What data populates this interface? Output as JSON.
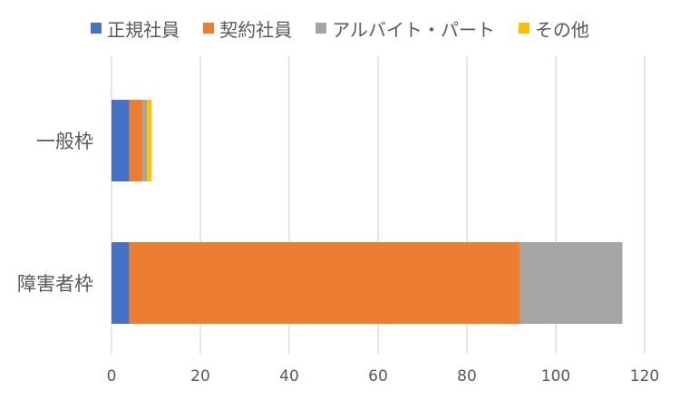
{
  "chart_data": {
    "type": "bar",
    "orientation": "horizontal",
    "stacked": true,
    "categories": [
      "一般枠",
      "障害者枠"
    ],
    "series": [
      {
        "name": "正規社員",
        "color": "#4472C4",
        "values": [
          4,
          4
        ]
      },
      {
        "name": "契約社員",
        "color": "#ED7D31",
        "values": [
          3,
          88
        ]
      },
      {
        "name": "アルバイト・パート",
        "color": "#A5A5A5",
        "values": [
          1,
          23
        ]
      },
      {
        "name": "その他",
        "color": "#FFC000",
        "values": [
          1,
          0
        ]
      }
    ],
    "xlim": [
      0,
      120
    ],
    "xticks": [
      0,
      20,
      40,
      60,
      80,
      100,
      120
    ],
    "grid": "vertical",
    "legend_position": "top",
    "title": "",
    "xlabel": "",
    "ylabel": ""
  }
}
